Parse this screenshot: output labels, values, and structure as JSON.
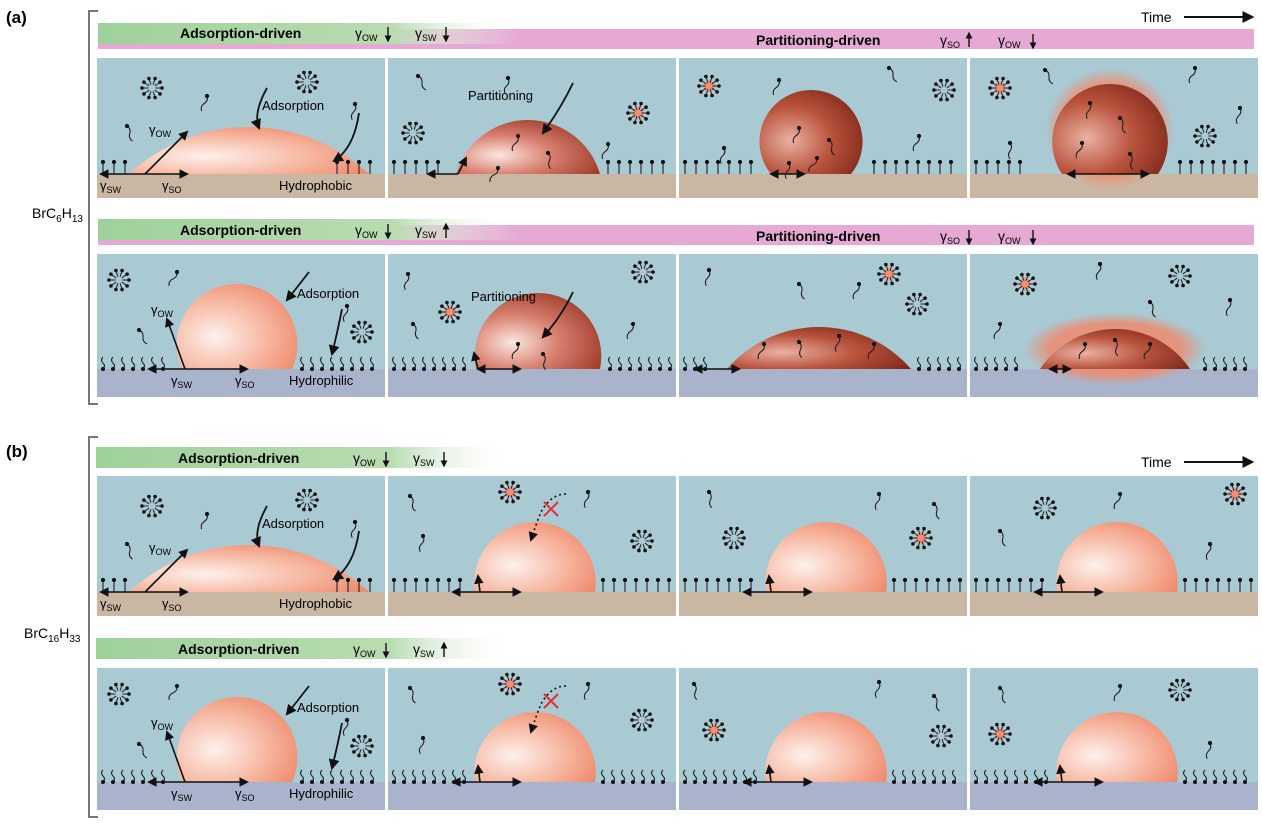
{
  "colors": {
    "water": "#a9c9d3",
    "hydrophobic_substrate": "#c9b7a4",
    "hydrophilic_substrate": "#a9b4cc",
    "adsorption_band": "#9ed19a",
    "partitioning_band": "#e5a9d3",
    "droplet_light": "#fde2da",
    "droplet_mid": "#f3a084",
    "droplet_dark": "#8e2f1f",
    "partition_cross": "#e23232"
  },
  "panel_a": {
    "label": "(a)",
    "compound_prefix": "BrC",
    "compound_sub1": "6",
    "compound_mid": "H",
    "compound_sub2": "13",
    "time_label": "Time",
    "row1": {
      "band_left_label": "Adsorption-driven",
      "band_left_g1": "γ",
      "band_left_g1_sub": "OW",
      "band_left_g1_dir": "down",
      "band_left_g2": "γ",
      "band_left_g2_sub": "SW",
      "band_left_g2_dir": "down",
      "band_right_label": "Partitioning-driven",
      "band_right_g1": "γ",
      "band_right_g1_sub": "SO",
      "band_right_g1_dir": "up",
      "band_right_g2": "γ",
      "band_right_g2_sub": "OW",
      "band_right_g2_dir": "down",
      "substrate_label": "Hydrophobic",
      "adsorption_label": "Adsorption",
      "partitioning_label": "Partitioning",
      "gamma_ow": "γ",
      "gamma_ow_sub": "OW",
      "gamma_sw": "γ",
      "gamma_sw_sub": "SW",
      "gamma_so": "γ",
      "gamma_so_sub": "SO"
    },
    "row2": {
      "band_left_label": "Adsorption-driven",
      "band_left_g1": "γ",
      "band_left_g1_sub": "OW",
      "band_left_g1_dir": "down",
      "band_left_g2": "γ",
      "band_left_g2_sub": "SW",
      "band_left_g2_dir": "up",
      "band_right_label": "Partitioning-driven",
      "band_right_g1": "γ",
      "band_right_g1_sub": "SO",
      "band_right_g1_dir": "down",
      "band_right_g2": "γ",
      "band_right_g2_sub": "OW",
      "band_right_g2_dir": "down",
      "substrate_label": "Hydrophilic",
      "adsorption_label": "Adsorption",
      "partitioning_label": "Partitioning",
      "gamma_ow": "γ",
      "gamma_ow_sub": "OW",
      "gamma_sw": "γ",
      "gamma_sw_sub": "SW",
      "gamma_so": "γ",
      "gamma_so_sub": "SO"
    }
  },
  "panel_b": {
    "label": "(b)",
    "compound_prefix": "BrC",
    "compound_sub1": "16",
    "compound_mid": "H",
    "compound_sub2": "33",
    "time_label": "Time",
    "row1": {
      "band_left_label": "Adsorption-driven",
      "band_left_g1": "γ",
      "band_left_g1_sub": "OW",
      "band_left_g1_dir": "down",
      "band_left_g2": "γ",
      "band_left_g2_sub": "SW",
      "band_left_g2_dir": "down",
      "substrate_label": "Hydrophobic",
      "adsorption_label": "Adsorption",
      "gamma_ow": "γ",
      "gamma_ow_sub": "OW",
      "gamma_sw": "γ",
      "gamma_sw_sub": "SW",
      "gamma_so": "γ",
      "gamma_so_sub": "SO"
    },
    "row2": {
      "band_left_label": "Adsorption-driven",
      "band_left_g1": "γ",
      "band_left_g1_sub": "OW",
      "band_left_g1_dir": "down",
      "band_left_g2": "γ",
      "band_left_g2_sub": "SW",
      "band_left_g2_dir": "up",
      "substrate_label": "Hydrophilic",
      "adsorption_label": "Adsorption",
      "gamma_ow": "γ",
      "gamma_ow_sub": "OW",
      "gamma_sw": "γ",
      "gamma_sw_sub": "SW",
      "gamma_so": "γ",
      "gamma_so_sub": "SO"
    }
  }
}
